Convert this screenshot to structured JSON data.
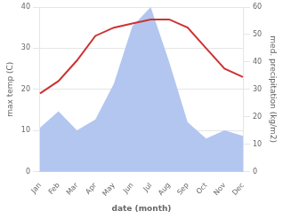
{
  "chart_data": {
    "type": "line",
    "categories": [
      "Jan",
      "Feb",
      "Mar",
      "Apr",
      "May",
      "Jun",
      "Jul",
      "Aug",
      "Sep",
      "Oct",
      "Nov",
      "Dec"
    ],
    "series": [
      {
        "type": "area",
        "color": "#b3c6f0",
        "axis": "y2",
        "values": [
          16,
          22,
          15,
          19,
          32,
          53,
          60,
          40,
          18,
          12,
          15,
          13
        ]
      },
      {
        "type": "line",
        "color": "#cc3333",
        "values": [
          19,
          22,
          27,
          33,
          35,
          36,
          37,
          37,
          35,
          30,
          25,
          23
        ]
      }
    ],
    "xlabel": "date (month)",
    "ylabel": "max temp (C)",
    "y2label": "med. precipitation (kg/m2)",
    "ylim": [
      0,
      40
    ],
    "yticks": [
      0,
      10,
      20,
      30,
      40
    ],
    "y2lim": [
      0,
      60
    ],
    "y2ticks": [
      0,
      10,
      20,
      30,
      40,
      50,
      60
    ],
    "grid": true
  }
}
